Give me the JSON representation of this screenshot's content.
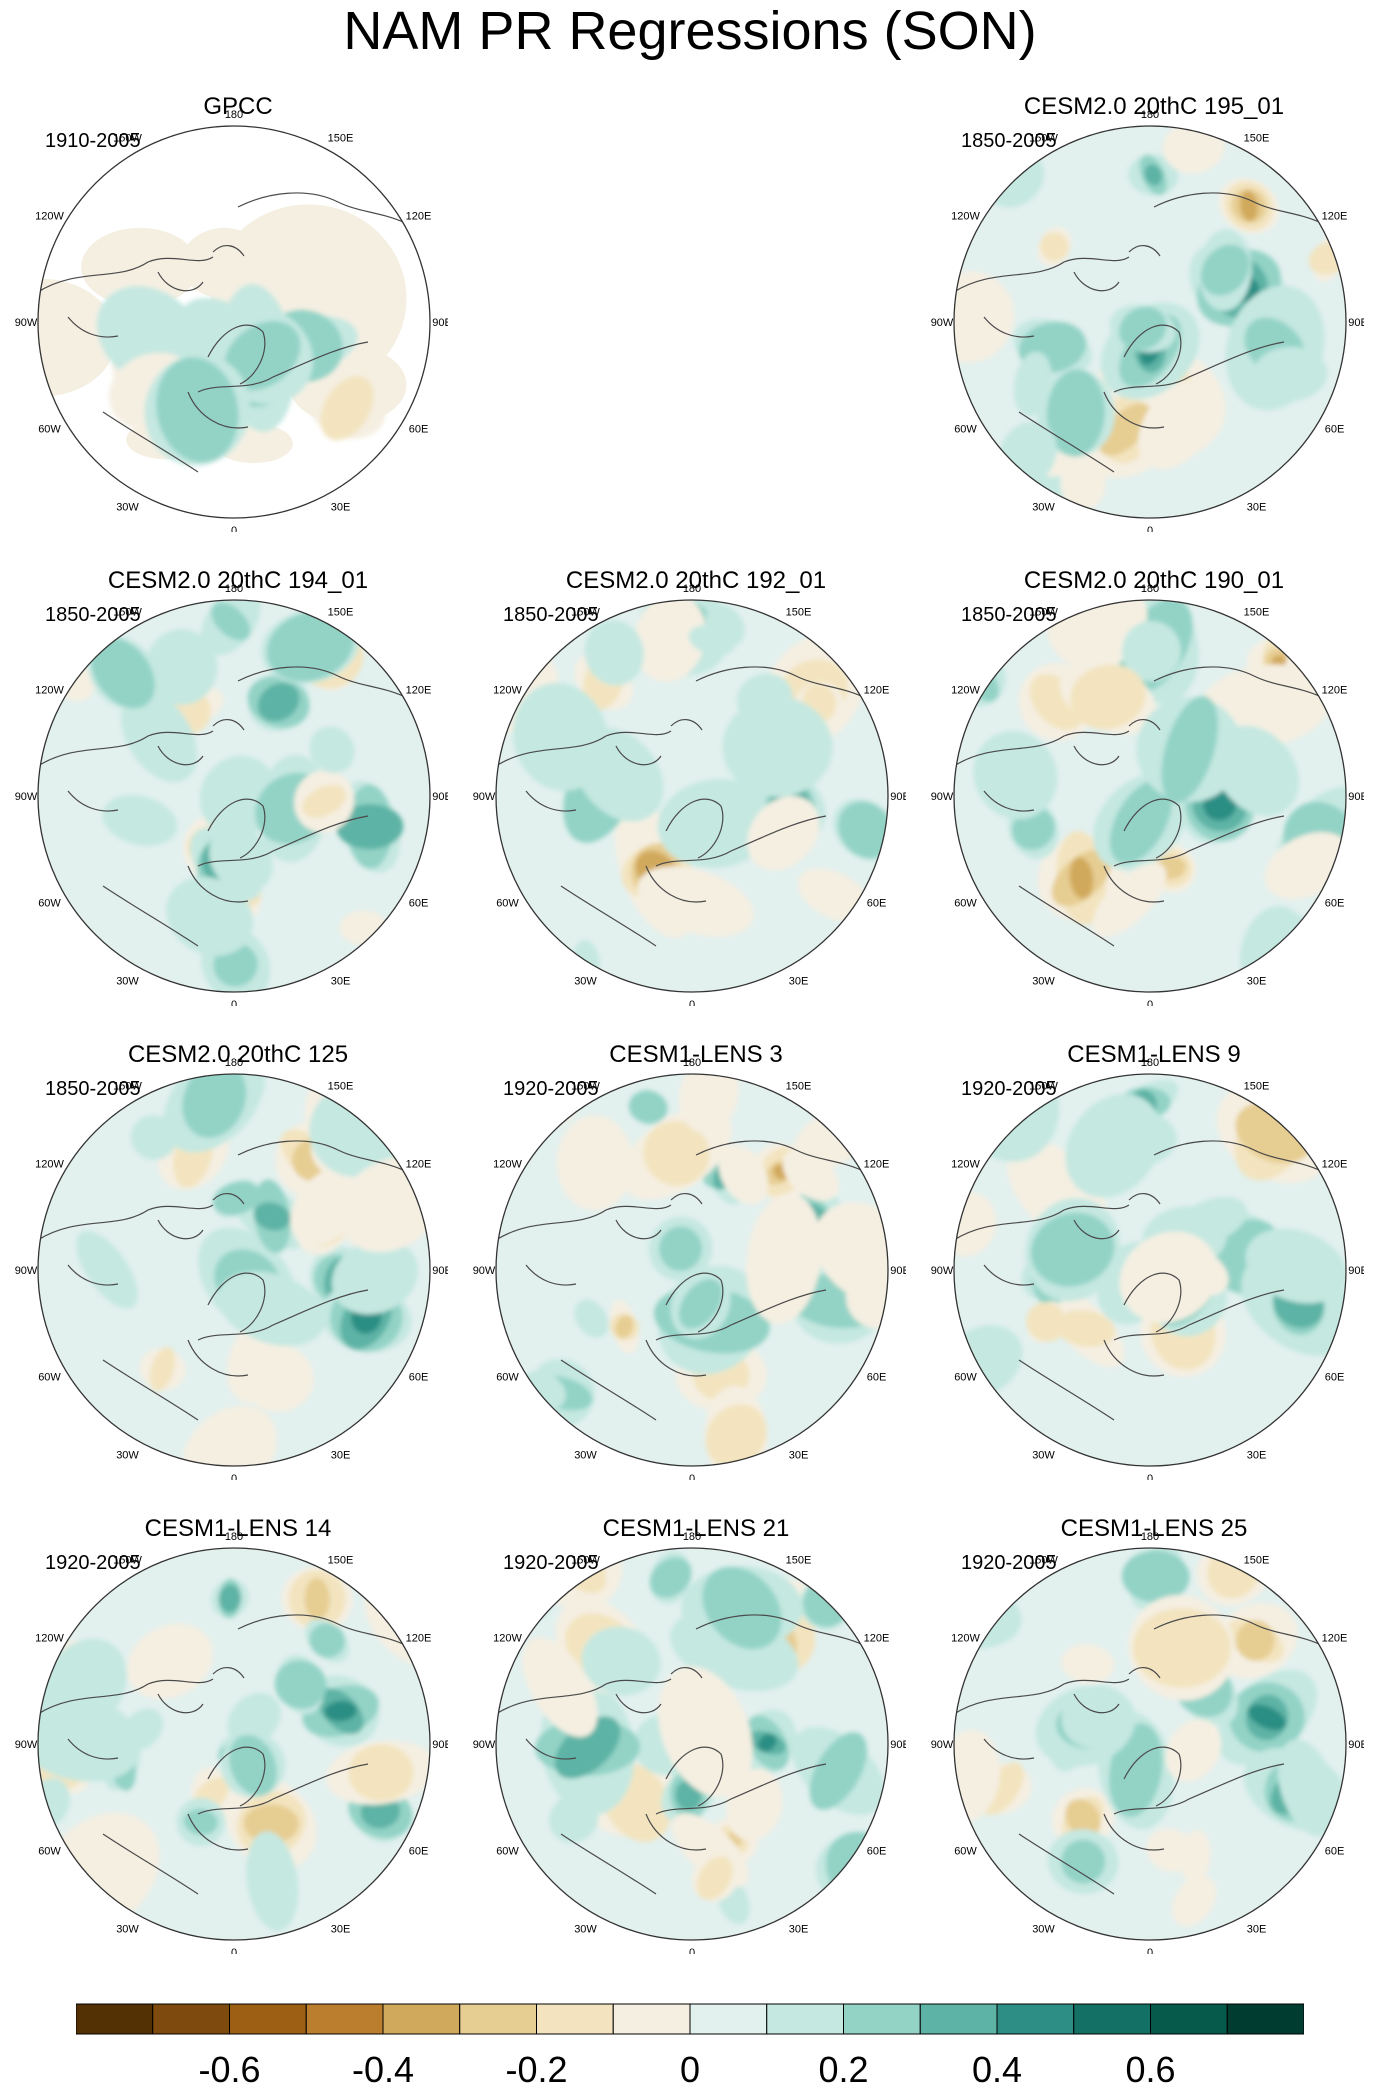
{
  "title": "NAM PR Regressions (SON)",
  "chart_data": {
    "type": "heatmap",
    "title": "NAM PR Regressions (SON)",
    "projection": "north polar stereographic",
    "longitude_labels": [
      "180",
      "150E",
      "120E",
      "90E",
      "60E",
      "30E",
      "0",
      "30W",
      "60W",
      "90W",
      "120W",
      "150W"
    ],
    "panels": [
      {
        "name": "GPCC",
        "period": "1910-2005",
        "grid_pos": "row1-col1"
      },
      {
        "name": "CESM2.0 20thC 195_01",
        "period": "1850-2005",
        "grid_pos": "row1-col3"
      },
      {
        "name": "CESM2.0 20thC 194_01",
        "period": "1850-2005",
        "grid_pos": "row2-col1"
      },
      {
        "name": "CESM2.0 20thC 192_01",
        "period": "1850-2005",
        "grid_pos": "row2-col2"
      },
      {
        "name": "CESM2.0 20thC 190_01",
        "period": "1850-2005",
        "grid_pos": "row2-col3"
      },
      {
        "name": "CESM2.0 20thC 125",
        "period": "1850-2005",
        "grid_pos": "row3-col1"
      },
      {
        "name": "CESM1-LENS 3",
        "period": "1920-2005",
        "grid_pos": "row3-col2"
      },
      {
        "name": "CESM1-LENS 9",
        "period": "1920-2005",
        "grid_pos": "row3-col3"
      },
      {
        "name": "CESM1-LENS 14",
        "period": "1920-2005",
        "grid_pos": "row4-col1"
      },
      {
        "name": "CESM1-LENS 21",
        "period": "1920-2005",
        "grid_pos": "row4-col2"
      },
      {
        "name": "CESM1-LENS 25",
        "period": "1920-2005",
        "grid_pos": "row4-col3"
      }
    ],
    "colorbar": {
      "colors": [
        "#543005",
        "#7f4a0d",
        "#9c5f14",
        "#bb7e2e",
        "#d1a95c",
        "#e6cd92",
        "#f3e4bf",
        "#f5efe2",
        "#e2f0ee",
        "#c5e8e1",
        "#93d3c6",
        "#5db3a5",
        "#2c8e84",
        "#137064",
        "#055a4b",
        "#003c30"
      ],
      "tick_labels": [
        "-0.6",
        "-0.4",
        "-0.2",
        "0",
        "0.2",
        "0.4",
        "0.6"
      ],
      "tick_values": [
        -0.6,
        -0.4,
        -0.2,
        0,
        0.2,
        0.4,
        0.6
      ],
      "range": [
        -0.8,
        0.8
      ]
    }
  }
}
